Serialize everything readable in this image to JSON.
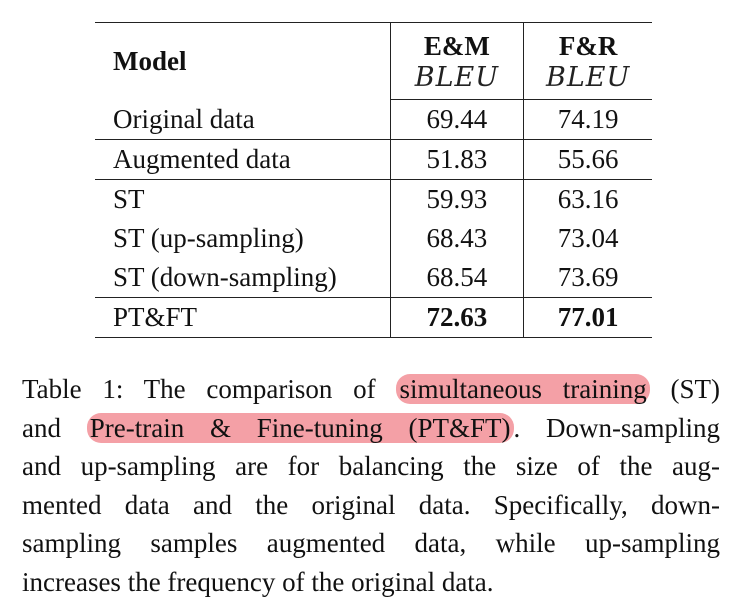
{
  "table": {
    "header": {
      "model_label": "Model",
      "col1": "E&M",
      "col2": "F&R",
      "col1_metric": "BLEU",
      "col2_metric": "BLEU"
    },
    "rows": [
      {
        "model": "Original data",
        "em": "69.44",
        "fr": "74.19"
      },
      {
        "model": "Augmented data",
        "em": "51.83",
        "fr": "55.66"
      },
      {
        "model": "ST",
        "em": "59.93",
        "fr": "63.16"
      },
      {
        "model": "ST (up-sampling)",
        "em": "68.43",
        "fr": "73.04"
      },
      {
        "model": "ST (down-sampling)",
        "em": "68.54",
        "fr": "73.69"
      },
      {
        "model": "PT&FT",
        "em": "72.63",
        "fr": "77.01"
      }
    ]
  },
  "caption": {
    "line1_a": "Table 1: The comparison of",
    "line1_hl": "simultaneous training",
    "line1_b": "(ST)",
    "line2_a": "and",
    "line2_hl": "Pre-train & Fine-tuning (PT&FT)",
    "line2_b": ". Down-sampling",
    "line3": "and up-sampling are for balancing the size of the aug-",
    "line4": "mented data and the original data. Specifically, down-",
    "line5": "sampling samples augmented data, while up-sampling",
    "line6": "increases the frequency of the original data."
  },
  "colors": {
    "highlight": "#f4a0a6"
  }
}
